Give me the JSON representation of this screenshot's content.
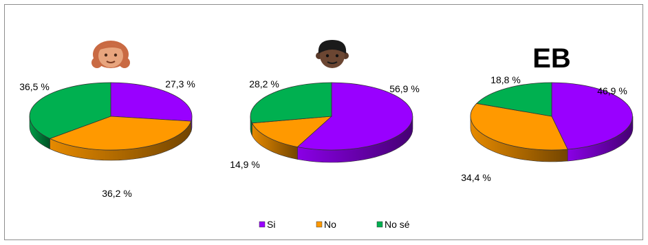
{
  "chart_data": {
    "type": "pie",
    "legend": {
      "placement": "bottom",
      "entries": [
        {
          "label": "Si",
          "color": "#9900ff"
        },
        {
          "label": "No",
          "color": "#ff9900"
        },
        {
          "label": "No sé",
          "color": "#00b050"
        }
      ]
    },
    "charts": [
      {
        "header_kind": "icon",
        "icon": "girl-face-icon",
        "header_text": "",
        "slices": [
          {
            "label": "Si",
            "value": 27.3,
            "display": "27,3 %"
          },
          {
            "label": "No",
            "value": 36.2,
            "display": "36,2 %"
          },
          {
            "label": "No sé",
            "value": 36.5,
            "display": "36,5 %"
          }
        ]
      },
      {
        "header_kind": "icon",
        "icon": "boy-face-icon",
        "header_text": "",
        "slices": [
          {
            "label": "Si",
            "value": 56.9,
            "display": "56,9 %"
          },
          {
            "label": "No",
            "value": 14.9,
            "display": "14,9 %"
          },
          {
            "label": "No sé",
            "value": 28.2,
            "display": "28,2 %"
          }
        ]
      },
      {
        "header_kind": "text",
        "icon": "",
        "header_text": "EB",
        "slices": [
          {
            "label": "Si",
            "value": 46.9,
            "display": "46,9 %"
          },
          {
            "label": "No",
            "value": 34.4,
            "display": "34,4 %"
          },
          {
            "label": "No sé",
            "value": 18.8,
            "display": "18,8 %"
          }
        ]
      }
    ]
  }
}
